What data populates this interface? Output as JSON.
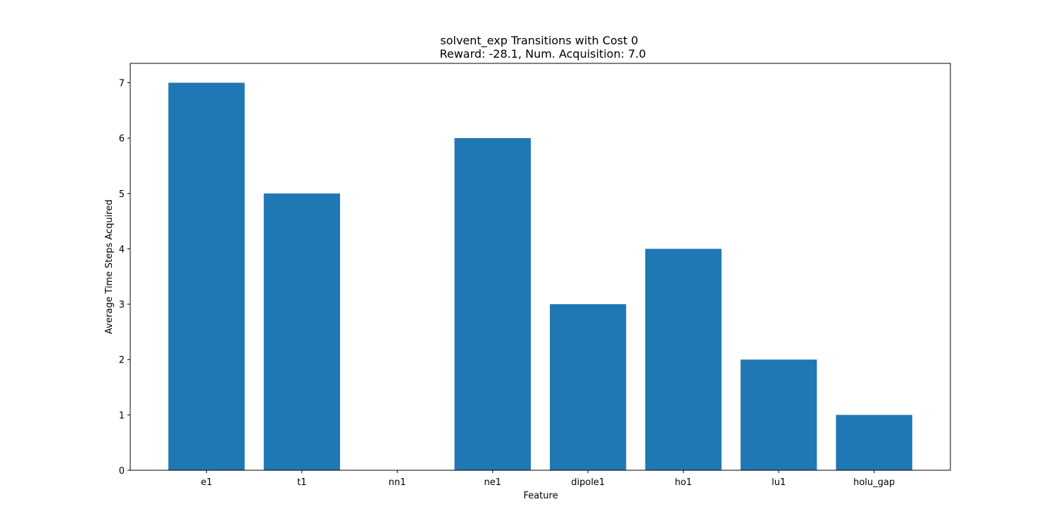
{
  "chart_data": {
    "type": "bar",
    "title_line1": "solvent_exp Transitions with Cost 0",
    "title_line2": "Reward: -28.1, Num. Acquisition: 7.0",
    "xlabel": "Feature",
    "ylabel": "Average Time Steps Acquired",
    "categories": [
      "e1",
      "t1",
      "nn1",
      "ne1",
      "dipole1",
      "ho1",
      "lu1",
      "holu_gap"
    ],
    "values": [
      7,
      5,
      0,
      6,
      3,
      4,
      2,
      1
    ],
    "ylim": [
      0,
      7.35
    ],
    "yticks": [
      0,
      1,
      2,
      3,
      4,
      5,
      6,
      7
    ],
    "grid": false,
    "bar_color": "#1f77b4"
  }
}
